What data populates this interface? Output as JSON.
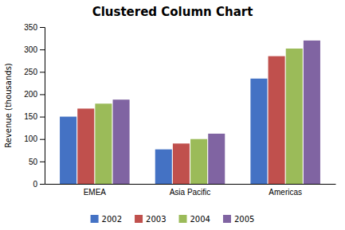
{
  "chart_data": {
    "type": "bar",
    "title": "Clustered Column Chart",
    "categories": [
      "EMEA",
      "Asia Pacific",
      "Americas"
    ],
    "series": [
      {
        "name": "2002",
        "color": "#4472C4",
        "values": [
          150,
          77,
          235
        ]
      },
      {
        "name": "2003",
        "color": "#C0504D",
        "values": [
          168,
          90,
          285
        ]
      },
      {
        "name": "2004",
        "color": "#9BBB59",
        "values": [
          179,
          100,
          302
        ]
      },
      {
        "name": "2005",
        "color": "#8064A2",
        "values": [
          188,
          112,
          320
        ]
      }
    ],
    "ylabel": "Revenue (thousands)",
    "ylim": [
      0,
      350
    ],
    "yticks": [
      0,
      50,
      100,
      150,
      200,
      250,
      300,
      350
    ],
    "grid": false,
    "legend": "bottom"
  }
}
